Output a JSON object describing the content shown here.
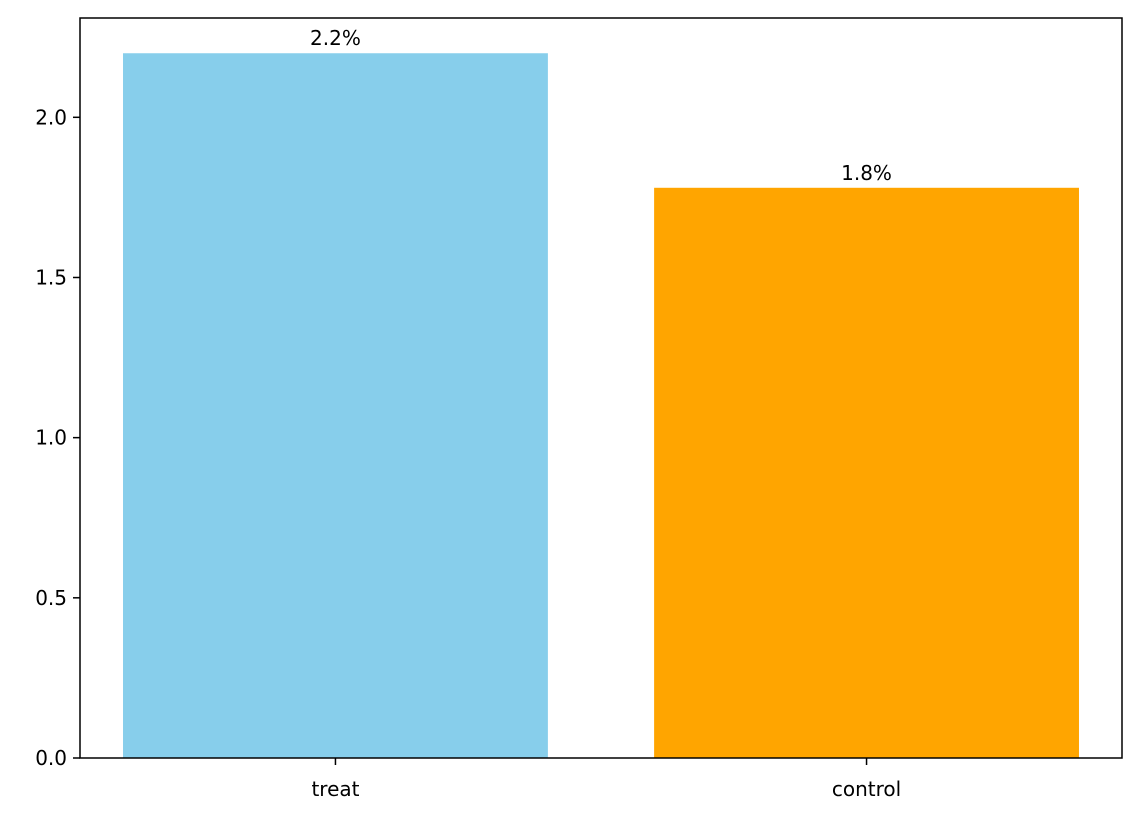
{
  "chart_data": {
    "type": "bar",
    "title": "",
    "xlabel": "",
    "ylabel": "",
    "categories": [
      "treat",
      "control"
    ],
    "values": [
      2.2,
      1.78
    ],
    "data_labels": [
      "2.2%",
      "1.8%"
    ],
    "colors": [
      "#87ceeb",
      "#ffa500"
    ],
    "ylim": [
      0,
      2.31
    ],
    "yticks": [
      0.0,
      0.5,
      1.0,
      1.5,
      2.0
    ],
    "ytick_labels": [
      "0.0",
      "0.5",
      "1.0",
      "1.5",
      "2.0"
    ],
    "grid": false,
    "legend": "none"
  }
}
